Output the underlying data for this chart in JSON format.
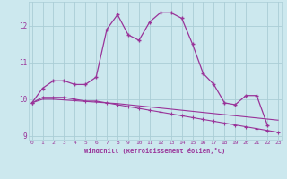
{
  "xlabel": "Windchill (Refroidissement éolien,°C)",
  "x_hours": [
    0,
    1,
    2,
    3,
    4,
    5,
    6,
    7,
    8,
    9,
    10,
    11,
    12,
    13,
    14,
    15,
    16,
    17,
    18,
    19,
    20,
    21,
    22,
    23
  ],
  "main_line": [
    9.9,
    10.3,
    10.5,
    10.5,
    10.4,
    10.4,
    10.6,
    11.9,
    12.3,
    11.75,
    11.6,
    12.1,
    12.35,
    12.35,
    12.2,
    11.5,
    10.7,
    10.4,
    9.9,
    9.85,
    10.1,
    10.1,
    9.3,
    null
  ],
  "line2": [
    9.9,
    10.05,
    10.05,
    10.05,
    10.0,
    9.95,
    9.95,
    9.9,
    9.85,
    9.8,
    9.75,
    9.7,
    9.65,
    9.6,
    9.55,
    9.5,
    9.45,
    9.4,
    9.35,
    9.3,
    9.25,
    9.2,
    9.15,
    9.1
  ],
  "line3": [
    9.9,
    10.0,
    10.0,
    9.98,
    9.96,
    9.94,
    9.92,
    9.9,
    9.88,
    9.85,
    9.82,
    9.79,
    9.76,
    9.73,
    9.7,
    9.67,
    9.64,
    9.61,
    9.58,
    9.55,
    9.52,
    9.49,
    9.46,
    9.43
  ],
  "bg_color": "#cce8ee",
  "grid_color": "#aacdd6",
  "line_color": "#993399",
  "ylim": [
    8.9,
    12.65
  ],
  "yticks": [
    9,
    10,
    11,
    12
  ],
  "xticks": [
    0,
    1,
    2,
    3,
    4,
    5,
    6,
    7,
    8,
    9,
    10,
    11,
    12,
    13,
    14,
    15,
    16,
    17,
    18,
    19,
    20,
    21,
    22,
    23
  ]
}
